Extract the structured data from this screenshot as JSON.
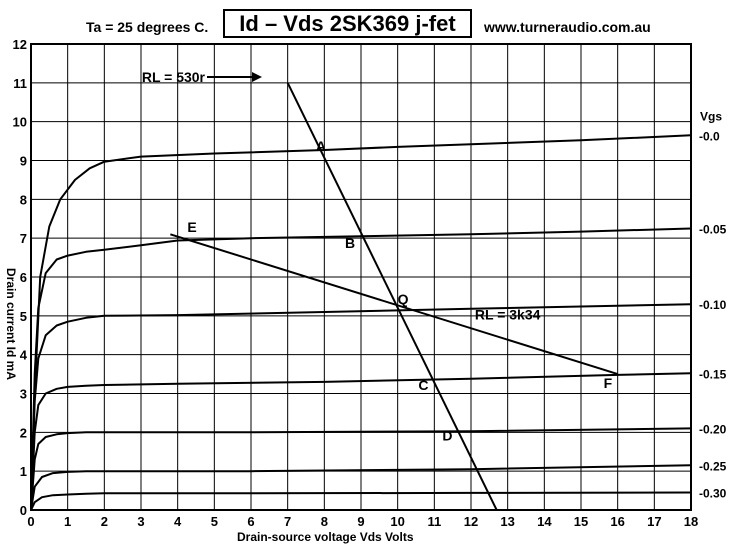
{
  "header": {
    "ambient": "Ta = 25 degrees C.",
    "title": "Id – Vds  2SK369 j-fet",
    "website": "www.turneraudio.com.au"
  },
  "chart_data": {
    "type": "line",
    "title": "Id – Vds  2SK369 j-fet",
    "xlabel": "Drain-source voltage  Vds Volts",
    "ylabel": "Drain current Id mA",
    "xlim": [
      0,
      18
    ],
    "ylim": [
      0,
      12
    ],
    "grid": true,
    "x_ticks": [
      0,
      1,
      2,
      3,
      4,
      5,
      6,
      7,
      8,
      9,
      10,
      11,
      12,
      13,
      14,
      15,
      16,
      17,
      18
    ],
    "y_ticks": [
      0,
      1,
      2,
      3,
      4,
      5,
      6,
      7,
      8,
      9,
      10,
      11,
      12
    ],
    "legend_title": "Vgs",
    "series": [
      {
        "name": "-0.0",
        "x": [
          0,
          0.1,
          0.25,
          0.5,
          0.8,
          1.2,
          1.6,
          2.0,
          3,
          5,
          8,
          10,
          12,
          15,
          18
        ],
        "y": [
          0,
          3.0,
          6.0,
          7.3,
          8.0,
          8.5,
          8.8,
          8.97,
          9.1,
          9.18,
          9.27,
          9.35,
          9.42,
          9.52,
          9.65
        ]
      },
      {
        "name": "-0.05",
        "x": [
          0,
          0.1,
          0.2,
          0.4,
          0.7,
          1.0,
          1.5,
          2.0,
          3,
          4,
          6,
          9,
          12,
          15,
          18
        ],
        "y": [
          0,
          3.5,
          5.2,
          6.1,
          6.45,
          6.55,
          6.65,
          6.7,
          6.82,
          6.94,
          7.0,
          7.05,
          7.1,
          7.17,
          7.25
        ]
      },
      {
        "name": "-0.10",
        "x": [
          0,
          0.1,
          0.2,
          0.4,
          0.7,
          1.0,
          1.5,
          2.0,
          4,
          8,
          12,
          15,
          18
        ],
        "y": [
          0,
          2.8,
          3.9,
          4.5,
          4.75,
          4.85,
          4.95,
          5.0,
          5.02,
          5.1,
          5.18,
          5.24,
          5.3
        ]
      },
      {
        "name": "-0.15",
        "x": [
          0,
          0.1,
          0.2,
          0.4,
          0.7,
          1.0,
          1.5,
          2.0,
          4,
          8,
          12,
          16,
          18
        ],
        "y": [
          0,
          2.0,
          2.7,
          3.0,
          3.12,
          3.17,
          3.2,
          3.22,
          3.25,
          3.3,
          3.38,
          3.48,
          3.52
        ]
      },
      {
        "name": "-0.20",
        "x": [
          0,
          0.1,
          0.2,
          0.4,
          0.7,
          1.0,
          1.5,
          2.0,
          6,
          12,
          18
        ],
        "y": [
          0,
          1.3,
          1.7,
          1.88,
          1.95,
          1.98,
          2.0,
          2.0,
          2.0,
          2.03,
          2.1
        ]
      },
      {
        "name": "-0.25",
        "x": [
          0,
          0.1,
          0.3,
          0.6,
          1.0,
          1.5,
          2.0,
          6,
          12,
          18
        ],
        "y": [
          0,
          0.6,
          0.85,
          0.95,
          0.98,
          1.0,
          1.0,
          1.0,
          1.05,
          1.15
        ]
      },
      {
        "name": "-0.30",
        "x": [
          0,
          0.1,
          0.3,
          0.6,
          1.0,
          1.5,
          2.0,
          6,
          12,
          18
        ],
        "y": [
          0,
          0.2,
          0.33,
          0.38,
          0.4,
          0.42,
          0.43,
          0.43,
          0.44,
          0.45
        ]
      }
    ],
    "load_lines": [
      {
        "name": "RL = 530r",
        "x": [
          7,
          12.7
        ],
        "y": [
          11,
          0
        ],
        "arrow_x": [
          4.8,
          6.3
        ],
        "arrow_y": [
          11.15,
          11.15
        ]
      },
      {
        "name": "RL = 3k34",
        "x": [
          3.8,
          16
        ],
        "y": [
          7.1,
          3.5
        ]
      }
    ],
    "points": [
      {
        "label": "A",
        "x": 8.15,
        "y": 9.3
      },
      {
        "label": "B",
        "x": 9.0,
        "y": 7.05
      },
      {
        "label": "Q",
        "x": 10.0,
        "y": 5.15
      },
      {
        "label": "C",
        "x": 11.0,
        "y": 3.4
      },
      {
        "label": "D",
        "x": 11.6,
        "y": 2.0
      },
      {
        "label": "E",
        "x": 4.1,
        "y": 6.95
      },
      {
        "label": "F",
        "x": 16.0,
        "y": 3.5
      }
    ]
  }
}
